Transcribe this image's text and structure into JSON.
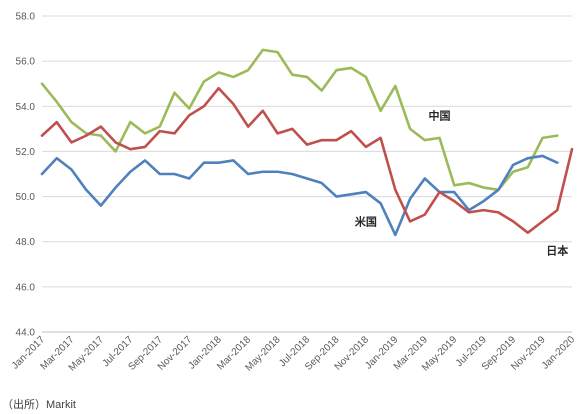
{
  "chart_data": {
    "type": "line",
    "source_note": "（出所）Markit",
    "ylim": [
      44.0,
      58.0
    ],
    "y_ticks": [
      "44.0",
      "46.0",
      "48.0",
      "50.0",
      "52.0",
      "54.0",
      "56.0",
      "58.0"
    ],
    "grid": "horizontal",
    "x": [
      "Jan-2017",
      "Feb-2017",
      "Mar-2017",
      "Apr-2017",
      "May-2017",
      "Jun-2017",
      "Jul-2017",
      "Aug-2017",
      "Sep-2017",
      "Oct-2017",
      "Nov-2017",
      "Dec-2017",
      "Jan-2018",
      "Feb-2018",
      "Mar-2018",
      "Apr-2018",
      "May-2018",
      "Jun-2018",
      "Jul-2018",
      "Aug-2018",
      "Sep-2018",
      "Oct-2018",
      "Nov-2018",
      "Dec-2018",
      "Jan-2019",
      "Feb-2019",
      "Mar-2019",
      "Apr-2019",
      "May-2019",
      "Jun-2019",
      "Jul-2019",
      "Aug-2019",
      "Sep-2019",
      "Oct-2019",
      "Nov-2019",
      "Dec-2019",
      "Jan-2020"
    ],
    "x_tick_labels": [
      "Jan-2017",
      "Mar-2017",
      "May-2017",
      "Jul-2017",
      "Sep-2017",
      "Nov-2017",
      "Jan-2018",
      "Mar-2018",
      "May-2018",
      "Jul-2018",
      "Sep-2018",
      "Nov-2018",
      "Jan-2019",
      "Mar-2019",
      "May-2019",
      "Jul-2019",
      "Sep-2019",
      "Nov-2019",
      "Jan-2020"
    ],
    "series": [
      {
        "name": "中国",
        "color": "#9BBB59",
        "label_anchor": {
          "x": "Apr-2019",
          "y": 53.6
        },
        "values": [
          55.0,
          54.2,
          53.3,
          52.8,
          52.7,
          52.0,
          53.3,
          52.8,
          53.1,
          54.6,
          53.9,
          55.1,
          55.5,
          55.3,
          55.6,
          56.5,
          56.4,
          55.4,
          55.3,
          54.7,
          55.6,
          55.7,
          55.3,
          53.8,
          54.9,
          53.0,
          52.5,
          52.6,
          50.5,
          50.6,
          50.4,
          50.3,
          51.1,
          51.3,
          52.6,
          52.7,
          null
        ]
      },
      {
        "name": "米国",
        "color": "#4F81BD",
        "label_anchor": {
          "x": "Nov-2018",
          "y": 48.9
        },
        "values": [
          51.0,
          51.7,
          51.2,
          50.3,
          49.6,
          50.4,
          51.1,
          51.6,
          51.0,
          51.0,
          50.8,
          51.5,
          51.5,
          51.6,
          51.0,
          51.1,
          51.1,
          51.0,
          50.8,
          50.6,
          50.0,
          50.1,
          50.2,
          49.7,
          48.3,
          49.9,
          50.8,
          50.2,
          50.2,
          49.4,
          49.8,
          50.3,
          51.4,
          51.7,
          51.8,
          51.5,
          null
        ]
      },
      {
        "name": "日本",
        "color": "#C0504D",
        "label_anchor": {
          "x": "Dec-2019",
          "y": 47.6
        },
        "values": [
          52.7,
          53.3,
          52.4,
          52.7,
          53.1,
          52.4,
          52.1,
          52.2,
          52.9,
          52.8,
          53.6,
          54.0,
          54.8,
          54.1,
          53.1,
          53.8,
          52.8,
          53.0,
          52.3,
          52.5,
          52.5,
          52.9,
          52.2,
          52.6,
          50.3,
          48.9,
          49.2,
          50.2,
          49.8,
          49.3,
          49.4,
          49.3,
          48.9,
          48.4,
          48.9,
          49.4,
          52.1
        ]
      }
    ]
  }
}
